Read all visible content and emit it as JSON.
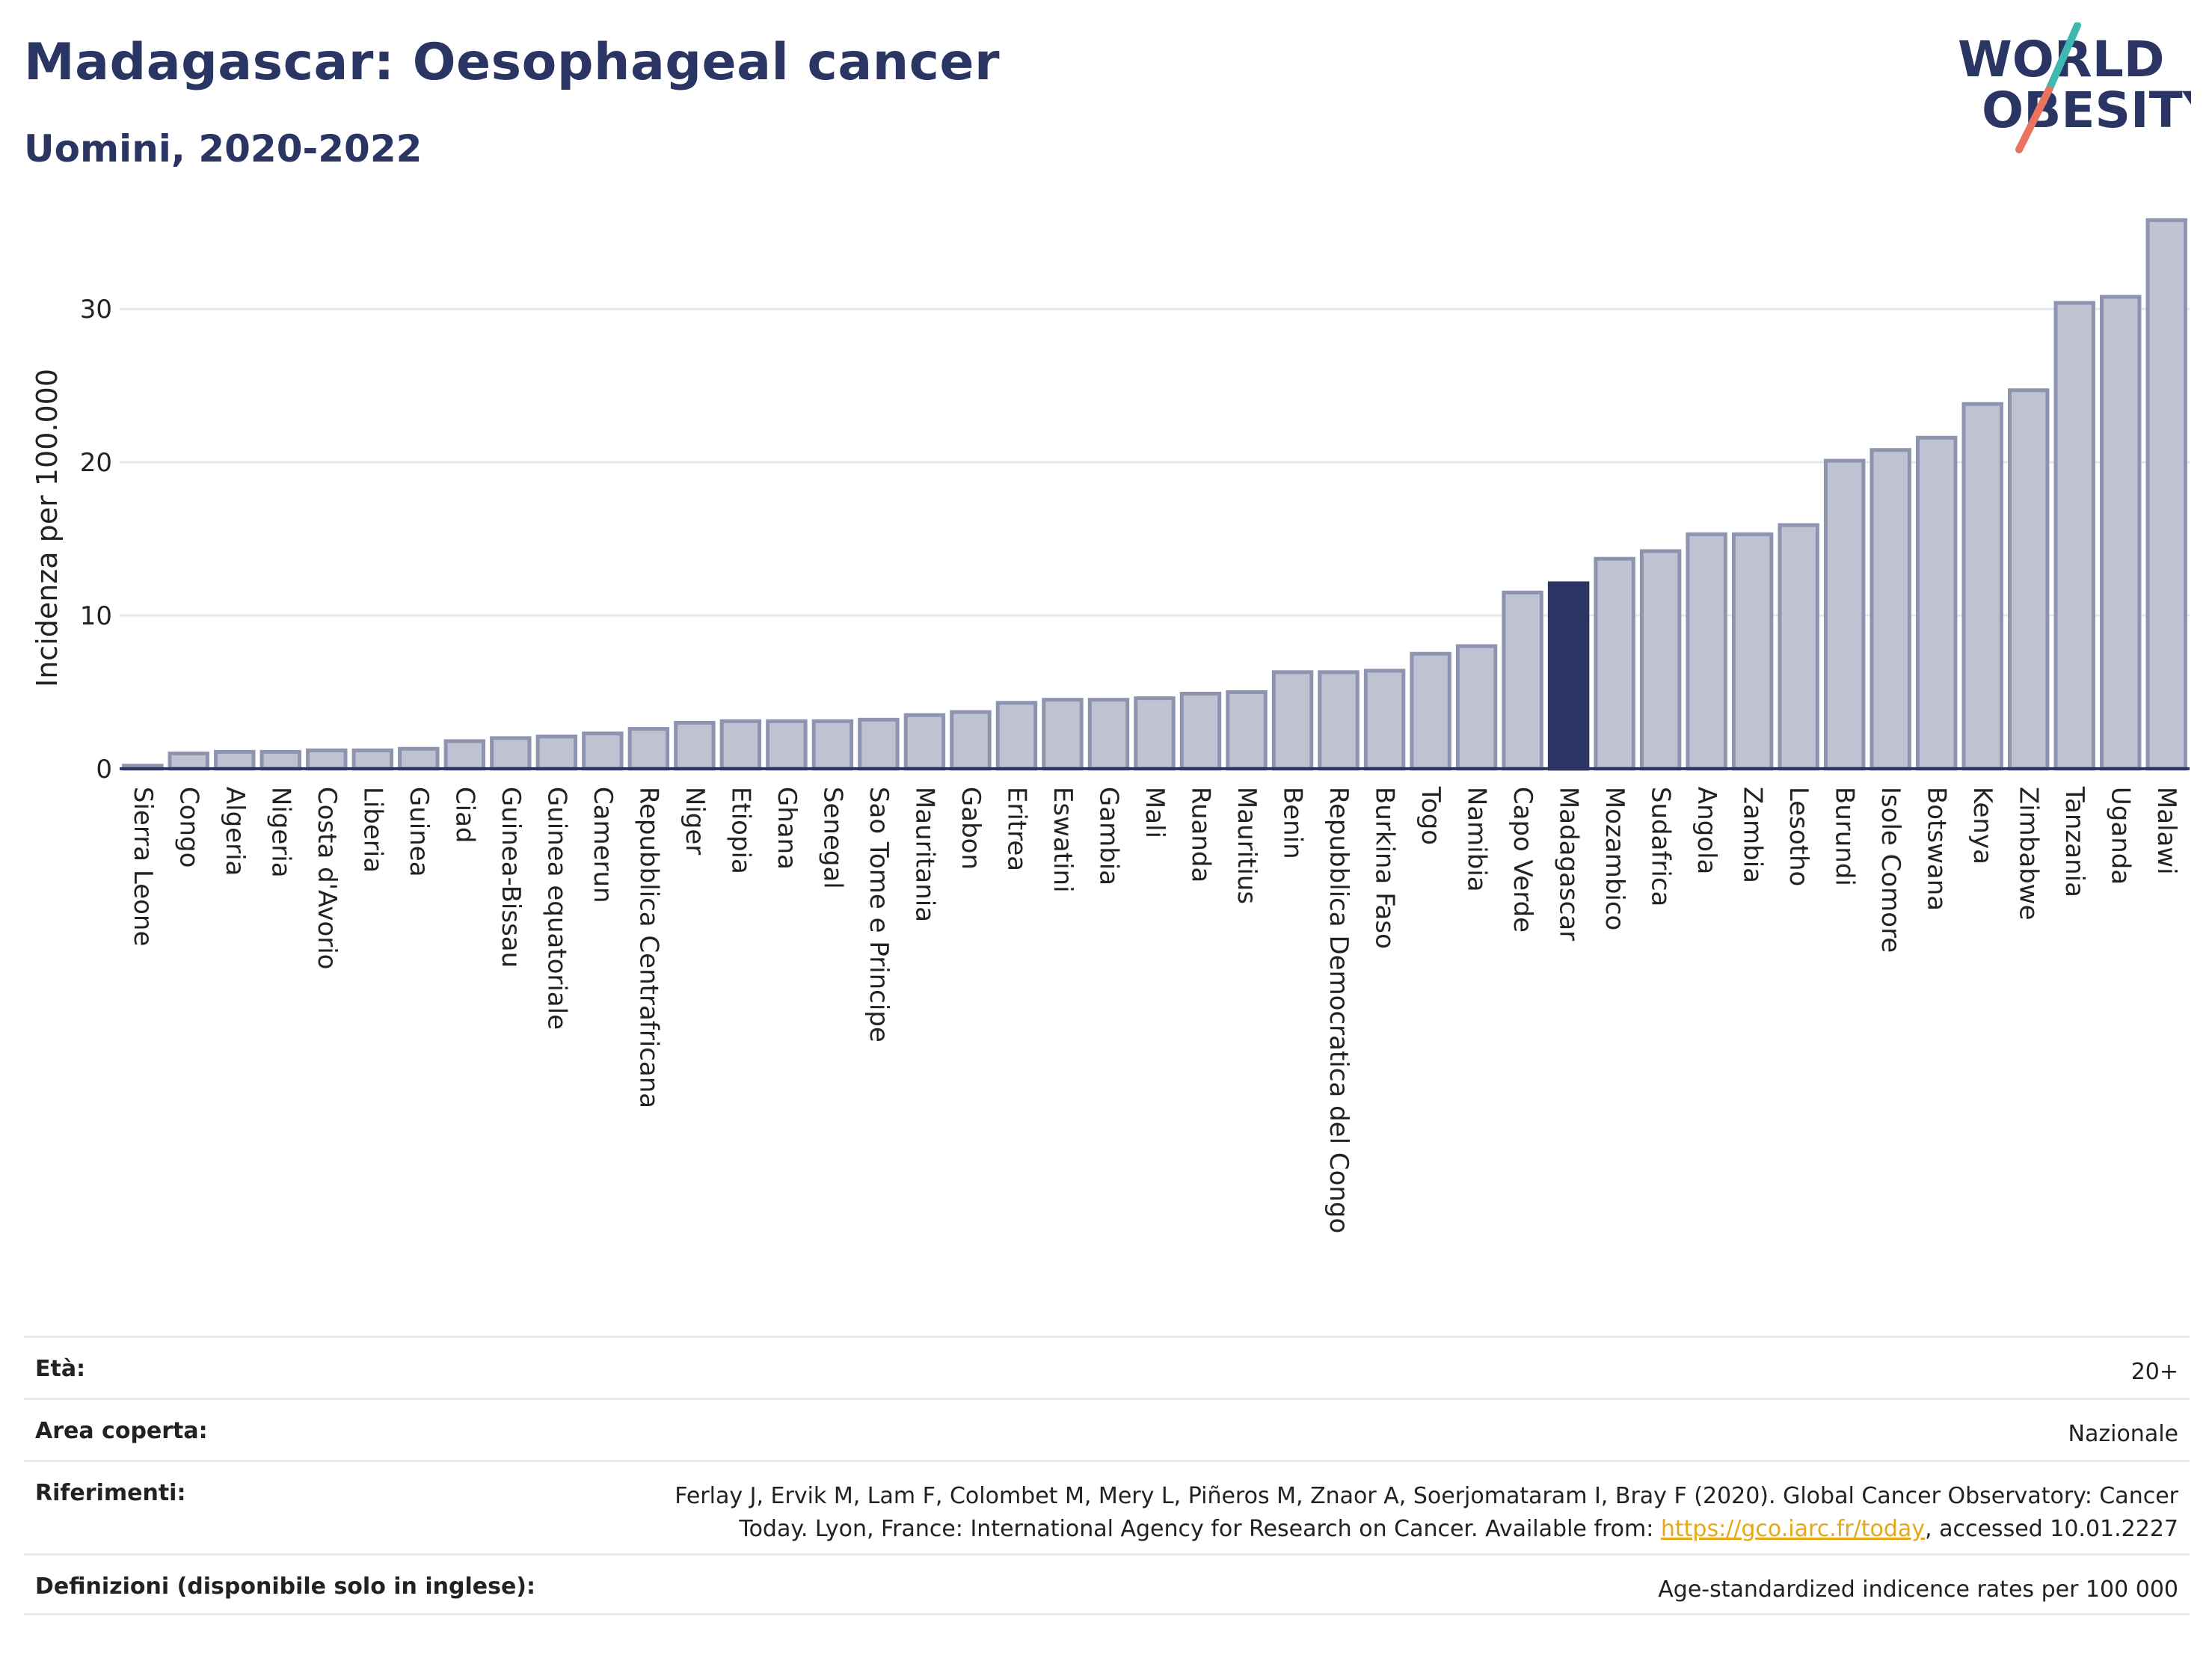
{
  "header": {
    "title": "Madagascar: Oesophageal cancer",
    "subtitle": "Uomini, 2020-2022"
  },
  "logo": {
    "line1": "WORLD",
    "line2": "OBESITY"
  },
  "chart_data": {
    "type": "bar",
    "ylabel": "Incidenza per 100.000",
    "xlabel": "",
    "ylim": [
      -0.2,
      36.5
    ],
    "yticks": [
      0,
      10,
      20,
      30
    ],
    "grid": true,
    "highlight": "Madagascar",
    "colors": {
      "bar": "#bfc3d1",
      "bar_edge": "#8e94b0",
      "highlight": "#2b3563",
      "grid": "#e6e8ee",
      "axis": "#2b3563"
    },
    "categories": [
      "Sierra Leone",
      "Congo",
      "Algeria",
      "Nigeria",
      "Costa d'Avorio",
      "Liberia",
      "Guinea",
      "Ciad",
      "Guinea-Bissau",
      "Guinea equatoriale",
      "Camerun",
      "Repubblica Centrafricana",
      "Niger",
      "Etiopia",
      "Ghana",
      "Senegal",
      "Sao Tome e Principe",
      "Mauritania",
      "Gabon",
      "Eritrea",
      "Eswatini",
      "Gambia",
      "Mali",
      "Ruanda",
      "Mauritius",
      "Benin",
      "Repubblica Democratica del Congo",
      "Burkina Faso",
      "Togo",
      "Namibia",
      "Capo Verde",
      "Madagascar",
      "Mozambico",
      "Sudafrica",
      "Angola",
      "Zambia",
      "Lesotho",
      "Burundi",
      "Isole Comore",
      "Botswana",
      "Kenya",
      "Zimbabwe",
      "Tanzania",
      "Uganda",
      "Malawi"
    ],
    "values": [
      0.2,
      1.0,
      1.1,
      1.1,
      1.2,
      1.2,
      1.3,
      1.8,
      2.0,
      2.1,
      2.3,
      2.6,
      3.0,
      3.1,
      3.1,
      3.1,
      3.2,
      3.5,
      3.7,
      4.3,
      4.5,
      4.5,
      4.6,
      4.9,
      5.0,
      6.3,
      6.3,
      6.4,
      7.5,
      8.0,
      11.5,
      12.1,
      13.7,
      14.2,
      15.3,
      15.3,
      15.9,
      20.1,
      20.8,
      21.6,
      23.8,
      24.7,
      30.4,
      30.8,
      35.8
    ]
  },
  "meta": {
    "age_label": "Età:",
    "age_value": "20+",
    "coverage_label": "Area coperta:",
    "coverage_value": "Nazionale",
    "references_label": "Riferimenti:",
    "references_text": "Ferlay J, Ervik M, Lam F, Colombet M, Mery L, Piñeros M, Znaor A, Soerjomataram I, Bray F (2020). Global Cancer Observatory: Cancer Today. Lyon, France: International Agency for Research on Cancer. Available from: ",
    "references_link": "https://gco.iarc.fr/today",
    "references_suffix": ", accessed 10.01.2227",
    "definitions_label": "Definizioni (disponibile solo in inglese):",
    "definitions_value": "Age-standardized indicence rates per 100 000"
  }
}
